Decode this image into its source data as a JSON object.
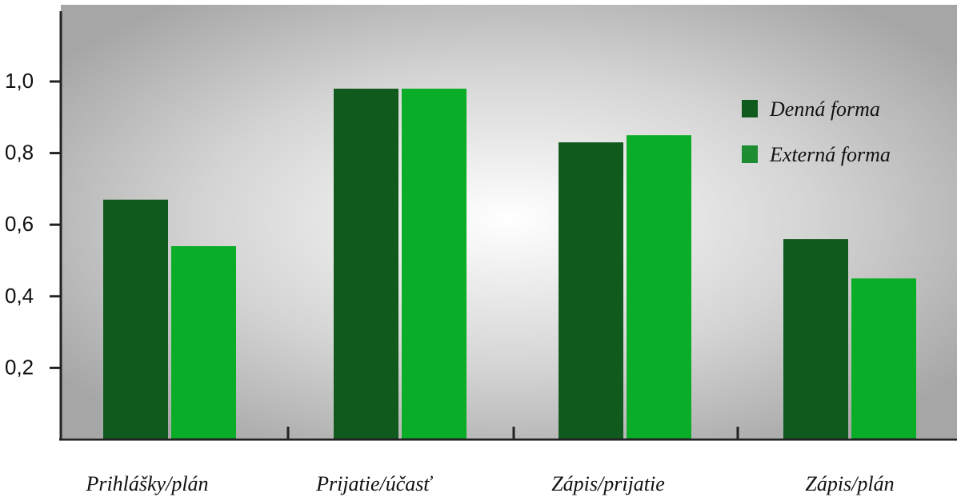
{
  "chart_data": {
    "type": "bar",
    "title": "",
    "xlabel": "",
    "ylabel": "",
    "categories": [
      "Prihlášky/plán",
      "Prijatie/účasť",
      "Zápis/prijatie",
      "Zápis/plán"
    ],
    "series": [
      {
        "name": "Denná forma",
        "values": [
          0.67,
          0.98,
          0.83,
          0.56
        ],
        "color": "#0f5a1c"
      },
      {
        "name": "Externá forma",
        "values": [
          0.54,
          0.98,
          0.85,
          0.45
        ],
        "color": "#0aad28"
      }
    ],
    "yticks": [
      {
        "value": 0.2,
        "label": "0,2"
      },
      {
        "value": 0.4,
        "label": "0,4"
      },
      {
        "value": 0.6,
        "label": "0,6"
      },
      {
        "value": 0.8,
        "label": "0,8"
      },
      {
        "value": 1.0,
        "label": "1,0"
      }
    ],
    "ylim": [
      0,
      1.2
    ],
    "grid": false,
    "legend_position": "top-right",
    "legend_swatch_colors": [
      "#0f5a1c",
      "#1e8c30"
    ]
  }
}
